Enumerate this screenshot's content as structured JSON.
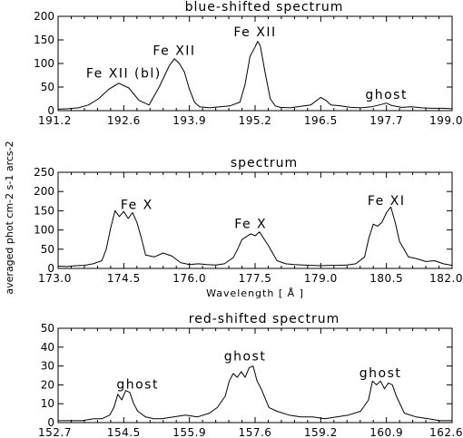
{
  "shared_ylabel": "averaged phot cm-2 s-1 arcs-2",
  "colors": {
    "line": "#000000",
    "background": "#ffffff"
  },
  "chart_data": [
    {
      "type": "line",
      "title": "blue-shifted spectrum",
      "xlabel": "",
      "xlim": [
        191.2,
        199.0
      ],
      "ylim": [
        0,
        200
      ],
      "xticks": [
        "191.2",
        "192.6",
        "193.9",
        "195.2",
        "196.5",
        "197.7",
        "199.0"
      ],
      "yticks": [
        "0",
        "50",
        "100",
        "150",
        "200"
      ],
      "grid": false,
      "annotations": [
        {
          "text": "Fe XII (bl)",
          "x": 192.5,
          "y": 70
        },
        {
          "text": "Fe XII",
          "x": 193.5,
          "y": 118
        },
        {
          "text": "Fe XII",
          "x": 195.1,
          "y": 158
        },
        {
          "text": "ghost",
          "x": 197.7,
          "y": 25
        }
      ],
      "series": [
        {
          "x": [
            191.2,
            191.4,
            191.6,
            191.8,
            192.0,
            192.2,
            192.4,
            192.6,
            192.8,
            193.0,
            193.2,
            193.4,
            193.5,
            193.6,
            193.7,
            193.8,
            193.9,
            194.0,
            194.2,
            194.4,
            194.6,
            194.8,
            194.9,
            195.0,
            195.1,
            195.15,
            195.2,
            195.3,
            195.4,
            195.5,
            195.6,
            195.8,
            196.0,
            196.2,
            196.4,
            196.5,
            196.6,
            196.8,
            197.0,
            197.2,
            197.4,
            197.6,
            197.7,
            197.8,
            198.0,
            198.2,
            198.4,
            198.6,
            198.8,
            199.0
          ],
          "y": [
            3,
            4,
            6,
            12,
            25,
            45,
            58,
            48,
            22,
            12,
            50,
            95,
            110,
            100,
            82,
            45,
            18,
            8,
            6,
            8,
            10,
            18,
            55,
            115,
            135,
            147,
            138,
            80,
            25,
            10,
            7,
            6,
            9,
            12,
            28,
            22,
            12,
            10,
            7,
            6,
            8,
            13,
            16,
            11,
            7,
            8,
            6,
            5,
            5,
            4
          ]
        }
      ]
    },
    {
      "type": "line",
      "title": "spectrum",
      "xlabel": "Wavelength [ Å ]",
      "xlim": [
        173.0,
        182.0
      ],
      "ylim": [
        0,
        250
      ],
      "xticks": [
        "173.0",
        "174.5",
        "176.0",
        "177.5",
        "179.0",
        "180.5",
        "182.0"
      ],
      "yticks": [
        "0",
        "50",
        "100",
        "150",
        "200",
        "250"
      ],
      "grid": false,
      "annotations": [
        {
          "text": "Fe X",
          "x": 174.8,
          "y": 155
        },
        {
          "text": "Fe X",
          "x": 177.4,
          "y": 105
        },
        {
          "text": "Fe XI",
          "x": 180.5,
          "y": 165
        }
      ],
      "series": [
        {
          "x": [
            173.0,
            173.2,
            173.4,
            173.6,
            173.8,
            174.0,
            174.1,
            174.2,
            174.3,
            174.4,
            174.5,
            174.6,
            174.7,
            174.8,
            174.9,
            175.0,
            175.2,
            175.4,
            175.6,
            175.8,
            176.0,
            176.2,
            176.4,
            176.6,
            176.8,
            177.0,
            177.1,
            177.2,
            177.4,
            177.5,
            177.6,
            177.8,
            178.0,
            178.2,
            178.4,
            178.6,
            178.8,
            179.0,
            179.2,
            179.4,
            179.6,
            179.8,
            180.0,
            180.1,
            180.2,
            180.3,
            180.4,
            180.5,
            180.6,
            180.7,
            180.8,
            181.0,
            181.2,
            181.4,
            181.6,
            181.8,
            182.0
          ],
          "y": [
            6,
            5,
            7,
            8,
            12,
            20,
            50,
            105,
            150,
            135,
            148,
            130,
            145,
            120,
            80,
            35,
            30,
            40,
            32,
            15,
            10,
            12,
            10,
            9,
            12,
            28,
            50,
            75,
            90,
            85,
            95,
            60,
            20,
            12,
            10,
            9,
            8,
            7,
            8,
            8,
            9,
            12,
            30,
            80,
            115,
            110,
            120,
            145,
            160,
            120,
            70,
            30,
            25,
            18,
            20,
            12,
            8
          ]
        }
      ]
    },
    {
      "type": "line",
      "title": "red-shifted spectrum",
      "xlabel": "",
      "xlim": [
        152.7,
        162.6
      ],
      "ylim": [
        0,
        50
      ],
      "xticks": [
        "152.7",
        "154.5",
        "155.9",
        "157.6",
        "159.2",
        "160.9",
        "162.6"
      ],
      "yticks": [
        "0",
        "10",
        "20",
        "30",
        "40",
        "50"
      ],
      "grid": false,
      "annotations": [
        {
          "text": "ghost",
          "x": 154.7,
          "y": 18
        },
        {
          "text": "ghost",
          "x": 157.4,
          "y": 33
        },
        {
          "text": "ghost",
          "x": 160.8,
          "y": 24
        }
      ],
      "series": [
        {
          "x": [
            152.7,
            153.0,
            153.3,
            153.6,
            153.8,
            154.0,
            154.1,
            154.2,
            154.3,
            154.4,
            154.5,
            154.6,
            154.7,
            154.9,
            155.1,
            155.3,
            155.6,
            155.9,
            156.2,
            156.5,
            156.7,
            156.9,
            157.0,
            157.1,
            157.2,
            157.3,
            157.4,
            157.5,
            157.6,
            157.7,
            157.8,
            158.0,
            158.2,
            158.5,
            158.8,
            159.1,
            159.4,
            159.7,
            160.0,
            160.3,
            160.5,
            160.6,
            160.7,
            160.8,
            160.9,
            161.0,
            161.1,
            161.2,
            161.4,
            161.7,
            162.0,
            162.3,
            162.6
          ],
          "y": [
            1,
            1,
            1,
            2,
            2,
            4,
            8,
            15,
            12,
            17,
            16,
            10,
            6,
            3,
            2,
            2,
            3,
            4,
            3,
            5,
            8,
            14,
            22,
            26,
            24,
            27,
            24,
            29,
            30,
            22,
            18,
            8,
            6,
            4,
            3,
            3,
            2,
            3,
            4,
            6,
            12,
            22,
            20,
            22,
            18,
            21,
            20,
            14,
            5,
            3,
            2,
            1,
            1
          ]
        }
      ]
    }
  ]
}
